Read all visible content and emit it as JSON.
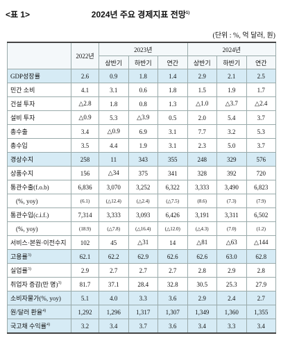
{
  "tag": "<표 1>",
  "title": "2024년 주요 경제지표 전망",
  "title_note": "1)",
  "unit": "(단위 : %, 억 달러, 원)",
  "header": {
    "first": "2022년",
    "years": [
      "2023년",
      "2024년"
    ],
    "halves": [
      "상반기",
      "하반기",
      "연간"
    ]
  },
  "rows": [
    {
      "label": "GDP성장률",
      "values": [
        "2.6",
        "0.9",
        "1.8",
        "1.4",
        "2.9",
        "2.1",
        "2.5"
      ],
      "highlight": true
    },
    {
      "label": "민간 소비",
      "values": [
        "4.1",
        "3.1",
        "0.6",
        "1.8",
        "1.5",
        "1.9",
        "1.7"
      ]
    },
    {
      "label": "건설 투자",
      "values": [
        "△2.8",
        "1.8",
        "0.8",
        "1.3",
        "△1.0",
        "△3.7",
        "△2.4"
      ]
    },
    {
      "label": "설비 투자",
      "values": [
        "△0.9",
        "5.3",
        "△3.9",
        "0.5",
        "2.0",
        "5.4",
        "3.7"
      ]
    },
    {
      "label": "총수출",
      "values": [
        "3.4",
        "△0.9",
        "6.9",
        "3.1",
        "7.7",
        "3.2",
        "5.3"
      ]
    },
    {
      "label": "총수입",
      "values": [
        "3.5",
        "4.4",
        "1.9",
        "3.1",
        "2.3",
        "5.0",
        "3.7"
      ]
    },
    {
      "label": "경상수지",
      "values": [
        "258",
        "11",
        "343",
        "355",
        "248",
        "329",
        "576"
      ],
      "highlight": true
    },
    {
      "label": "상품수지",
      "values": [
        "156",
        "△34",
        "375",
        "341",
        "328",
        "392",
        "720"
      ]
    },
    {
      "label": "통관수출(f.o.b)",
      "values": [
        "6,836",
        "3,070",
        "3,252",
        "6,322",
        "3,333",
        "3,490",
        "6,823"
      ]
    },
    {
      "label": "(%, yoy)",
      "values": [
        "(6.1)",
        "(△12.4)",
        "(△2.4)",
        "(△7.5)",
        "(8.6)",
        "(7.3)",
        "(7.9)"
      ],
      "small": true
    },
    {
      "label": "통관수입(c.i.f.)",
      "values": [
        "7,314",
        "3,333",
        "3,093",
        "6,426",
        "3,191",
        "3,311",
        "6,502"
      ]
    },
    {
      "label": "(%, yoy)",
      "values": [
        "(18.9)",
        "(△7.8)",
        "(△16.4)",
        "(△12.0)",
        "(△4.3)",
        "(7.0)",
        "(1.2)"
      ],
      "small": true
    },
    {
      "label": "서비스·본원·이전수지",
      "values": [
        "102",
        "45",
        "△31",
        "14",
        "△81",
        "△63",
        "△144"
      ]
    },
    {
      "label": "고용률",
      "note": "3)",
      "values": [
        "62.1",
        "62.2",
        "62.9",
        "62.6",
        "62.6",
        "63.0",
        "62.8"
      ],
      "highlight": true
    },
    {
      "label": "실업률",
      "note": "3)",
      "values": [
        "2.9",
        "2.7",
        "2.7",
        "2.7",
        "2.8",
        "2.9",
        "2.8"
      ]
    },
    {
      "label": "취업자 증감(만 명)",
      "note": "3)",
      "values": [
        "81.7",
        "37.1",
        "28.4",
        "32.8",
        "30.5",
        "25.3",
        "27.9"
      ]
    },
    {
      "label": "소비자물가(%, yoy)",
      "values": [
        "5.1",
        "4.0",
        "3.3",
        "3.6",
        "2.9",
        "2.4",
        "2.7"
      ],
      "highlight": true
    },
    {
      "label": "원/달러 환율",
      "note": "4)",
      "values": [
        "1,292",
        "1,296",
        "1,317",
        "1,307",
        "1,349",
        "1,360",
        "1,355"
      ],
      "highlight": true
    },
    {
      "label": "국고채 수익률",
      "note": "4)",
      "values": [
        "3.2",
        "3.4",
        "3.7",
        "3.6",
        "3.4",
        "3.3",
        "3.4"
      ],
      "highlight": true
    }
  ]
}
